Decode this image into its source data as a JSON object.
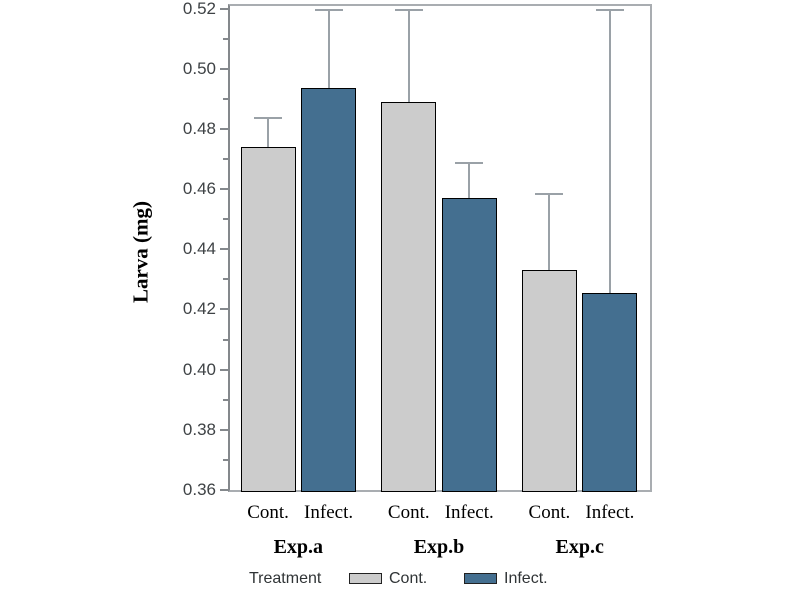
{
  "figure": {
    "background": "#ffffff"
  },
  "chart_data": {
    "type": "bar",
    "title": "",
    "ylabel": "Larva (mg)",
    "xlabel": "",
    "ylim": [
      0.36,
      0.52
    ],
    "ytick_step": 0.02,
    "ytick_minor_step": 0.01,
    "ytick_labels": [
      "0.36",
      "0.38",
      "0.40",
      "0.42",
      "0.44",
      "0.46",
      "0.48",
      "0.50",
      "0.52"
    ],
    "grid": false,
    "groups": [
      "Exp.a",
      "Exp.b",
      "Exp.c"
    ],
    "series": [
      {
        "name": "Cont.",
        "color": "#cccccc",
        "values": [
          0.474,
          0.489,
          0.433
        ],
        "upper_errors": [
          0.4835,
          0.5195,
          0.4585
        ]
      },
      {
        "name": "Infect.",
        "color": "#446f90",
        "values": [
          0.4935,
          0.457,
          0.4255
        ],
        "upper_errors": [
          0.5195,
          0.4685,
          0.5195
        ]
      }
    ],
    "legend": {
      "title": "Treatment",
      "entries": [
        "Cont.",
        "Infect."
      ],
      "position": "bottom"
    },
    "colors": {
      "bar_edge": "#000000",
      "error_bar": "#9aa1a7",
      "frame": "#a9adb1",
      "axis": "#84888c",
      "tick_label": "#3e4245"
    }
  }
}
